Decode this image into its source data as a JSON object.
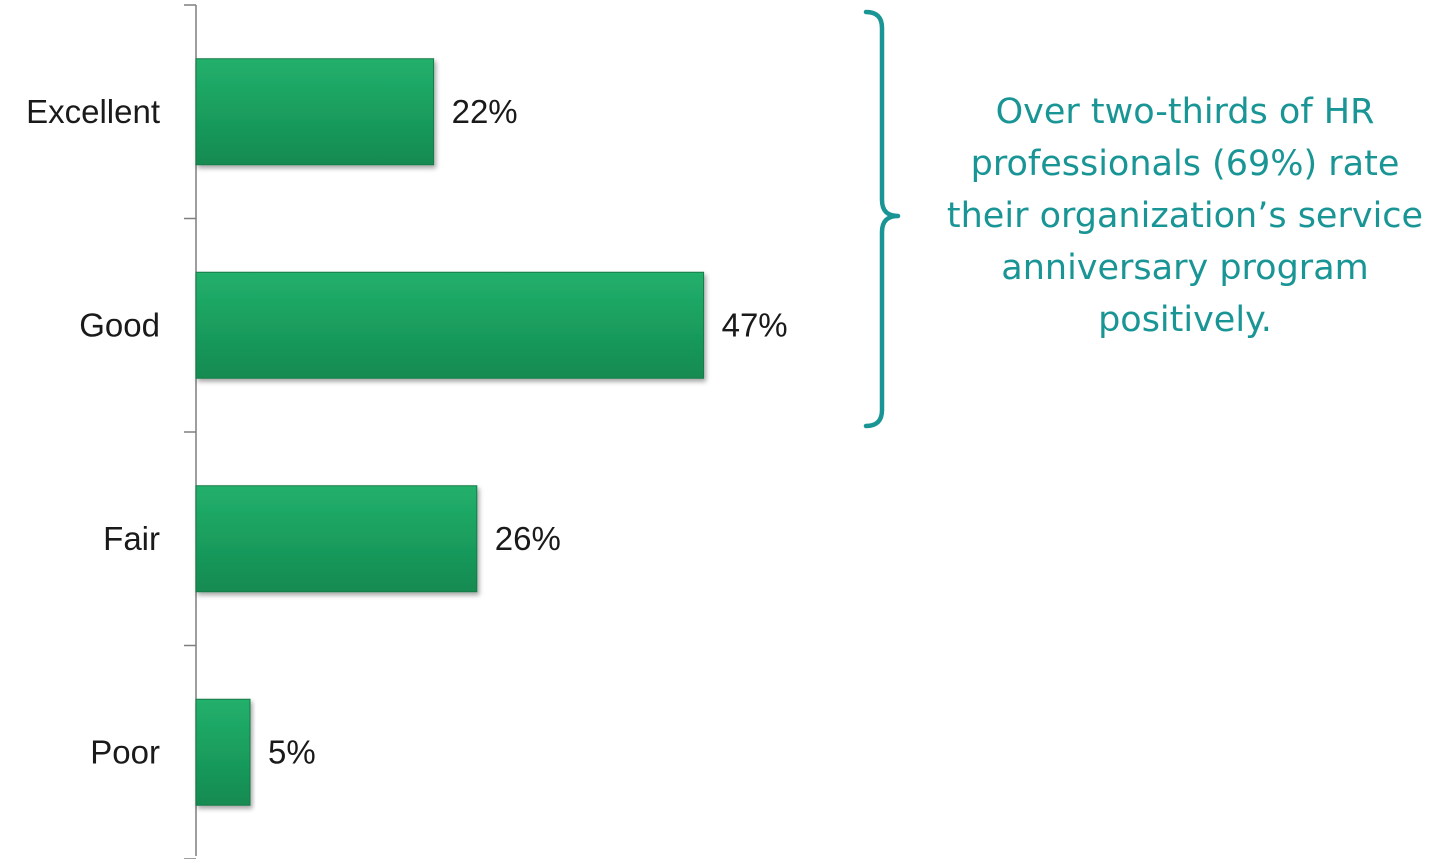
{
  "chart_data": {
    "type": "bar",
    "orientation": "horizontal",
    "categories": [
      "Excellent",
      "Good",
      "Fair",
      "Poor"
    ],
    "values": [
      22,
      47,
      26,
      5
    ],
    "value_labels": [
      "22%",
      "47%",
      "26%",
      "5%"
    ],
    "unit": "%",
    "xlim": [
      0,
      100
    ],
    "grid": false,
    "legend": "none",
    "bar_color": "#1a9e5e"
  },
  "annotation": {
    "text": "Over two-thirds of HR professionals (69%) rate their organization’s service anniversary program positively.",
    "color": "#1a9595",
    "brackets_categories": [
      "Excellent",
      "Good"
    ]
  }
}
